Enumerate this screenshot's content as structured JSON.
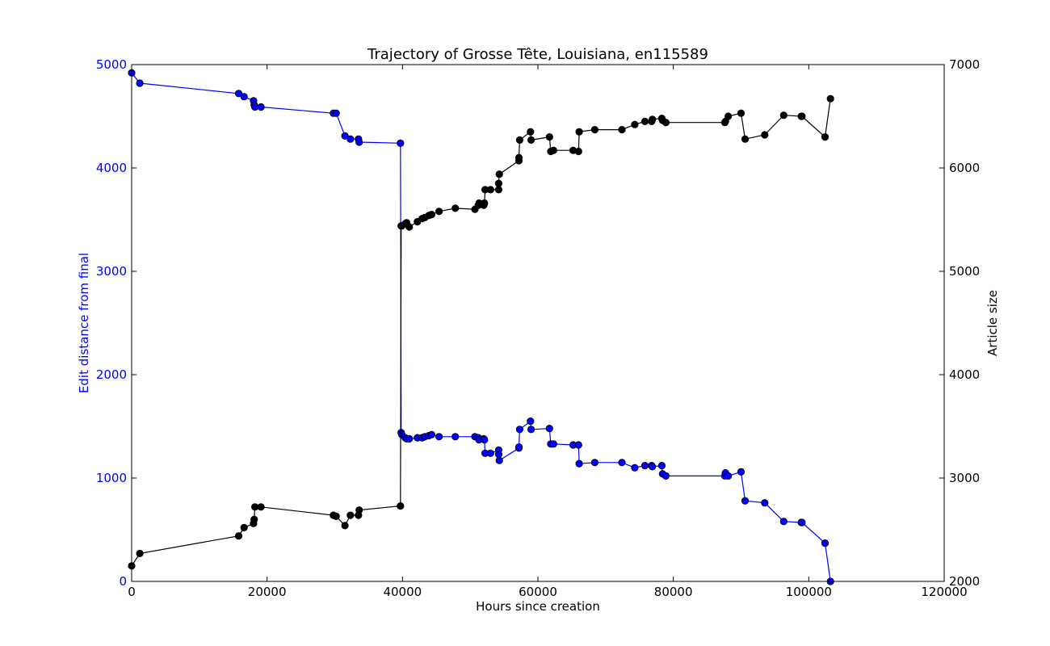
{
  "chart_data": {
    "type": "line",
    "title": "Trajectory of Grosse Tête, Louisiana, en115589",
    "xlabel": "Hours since creation",
    "ylabel_left": "Edit distance from final",
    "ylabel_right": "Article size",
    "xlim": [
      0,
      120000
    ],
    "ylim_left": [
      0,
      5000
    ],
    "ylim_right": [
      2000,
      7000
    ],
    "x_ticks": [
      "0",
      "20000",
      "40000",
      "60000",
      "80000",
      "100000",
      "120000"
    ],
    "y_left_ticks": [
      "0",
      "1000",
      "2000",
      "3000",
      "4000",
      "5000"
    ],
    "y_right_ticks": [
      "2000",
      "3000",
      "4000",
      "5000",
      "6000",
      "7000"
    ],
    "grid": false,
    "colors": {
      "left_series": "#0000ff",
      "right_series": "#000000"
    },
    "series": [
      {
        "axis": "left",
        "color": "#0000ff",
        "points": [
          [
            0,
            4920
          ],
          [
            1200,
            4820
          ],
          [
            15800,
            4720
          ],
          [
            16600,
            4690
          ],
          [
            18000,
            4650
          ],
          [
            18100,
            4610
          ],
          [
            18200,
            4590
          ],
          [
            19100,
            4590
          ],
          [
            29800,
            4530
          ],
          [
            30200,
            4530
          ],
          [
            31500,
            4310
          ],
          [
            32300,
            4280
          ],
          [
            33500,
            4280
          ],
          [
            33600,
            4250
          ],
          [
            39700,
            4240
          ],
          [
            39800,
            1440
          ],
          [
            39900,
            1420
          ],
          [
            40400,
            1390
          ],
          [
            40600,
            1380
          ],
          [
            41000,
            1380
          ],
          [
            42200,
            1390
          ],
          [
            42900,
            1390
          ],
          [
            43300,
            1400
          ],
          [
            43900,
            1410
          ],
          [
            44300,
            1420
          ],
          [
            45400,
            1400
          ],
          [
            47800,
            1400
          ],
          [
            50700,
            1400
          ],
          [
            51200,
            1390
          ],
          [
            51300,
            1370
          ],
          [
            52000,
            1380
          ],
          [
            52100,
            1370
          ],
          [
            52200,
            1240
          ],
          [
            53000,
            1240
          ],
          [
            54200,
            1270
          ],
          [
            54200,
            1230
          ],
          [
            54300,
            1170
          ],
          [
            57200,
            1290
          ],
          [
            57200,
            1300
          ],
          [
            57300,
            1470
          ],
          [
            58900,
            1550
          ],
          [
            59000,
            1470
          ],
          [
            61700,
            1480
          ],
          [
            61900,
            1330
          ],
          [
            62300,
            1330
          ],
          [
            65200,
            1320
          ],
          [
            66000,
            1320
          ],
          [
            66100,
            1140
          ],
          [
            68400,
            1150
          ],
          [
            72400,
            1150
          ],
          [
            74300,
            1100
          ],
          [
            75800,
            1120
          ],
          [
            76800,
            1120
          ],
          [
            76900,
            1110
          ],
          [
            78300,
            1120
          ],
          [
            78400,
            1040
          ],
          [
            78900,
            1020
          ],
          [
            87600,
            1020
          ],
          [
            87700,
            1050
          ],
          [
            88100,
            1020
          ],
          [
            90000,
            1060
          ],
          [
            90600,
            780
          ],
          [
            93500,
            760
          ],
          [
            96300,
            580
          ],
          [
            98900,
            570
          ],
          [
            99000,
            570
          ],
          [
            102400,
            370
          ],
          [
            103200,
            0
          ]
        ]
      },
      {
        "axis": "right",
        "color": "#000000",
        "points": [
          [
            0,
            2150
          ],
          [
            1200,
            2270
          ],
          [
            15800,
            2440
          ],
          [
            16600,
            2520
          ],
          [
            18000,
            2560
          ],
          [
            18100,
            2600
          ],
          [
            18200,
            2720
          ],
          [
            19100,
            2720
          ],
          [
            29800,
            2640
          ],
          [
            30200,
            2630
          ],
          [
            31500,
            2540
          ],
          [
            32300,
            2640
          ],
          [
            33500,
            2640
          ],
          [
            33600,
            2690
          ],
          [
            39700,
            2730
          ],
          [
            39800,
            5440
          ],
          [
            39900,
            5440
          ],
          [
            40400,
            5460
          ],
          [
            40600,
            5470
          ],
          [
            41000,
            5430
          ],
          [
            42200,
            5480
          ],
          [
            42900,
            5510
          ],
          [
            43300,
            5520
          ],
          [
            43900,
            5540
          ],
          [
            44300,
            5550
          ],
          [
            45400,
            5580
          ],
          [
            47800,
            5610
          ],
          [
            50700,
            5600
          ],
          [
            51200,
            5640
          ],
          [
            51300,
            5660
          ],
          [
            52000,
            5640
          ],
          [
            52100,
            5660
          ],
          [
            52200,
            5790
          ],
          [
            53000,
            5790
          ],
          [
            54200,
            5790
          ],
          [
            54200,
            5850
          ],
          [
            54300,
            5940
          ],
          [
            57200,
            6070
          ],
          [
            57200,
            6100
          ],
          [
            57300,
            6270
          ],
          [
            58900,
            6350
          ],
          [
            59000,
            6270
          ],
          [
            61700,
            6300
          ],
          [
            61900,
            6160
          ],
          [
            62300,
            6170
          ],
          [
            65200,
            6170
          ],
          [
            66000,
            6160
          ],
          [
            66100,
            6350
          ],
          [
            68400,
            6370
          ],
          [
            72400,
            6370
          ],
          [
            74300,
            6420
          ],
          [
            75800,
            6450
          ],
          [
            76800,
            6450
          ],
          [
            76900,
            6470
          ],
          [
            78300,
            6480
          ],
          [
            78400,
            6460
          ],
          [
            78900,
            6440
          ],
          [
            87600,
            6440
          ],
          [
            87700,
            6450
          ],
          [
            88100,
            6500
          ],
          [
            90000,
            6530
          ],
          [
            90600,
            6280
          ],
          [
            93500,
            6320
          ],
          [
            96300,
            6510
          ],
          [
            98900,
            6500
          ],
          [
            99000,
            6500
          ],
          [
            102400,
            6300
          ],
          [
            103200,
            6670
          ]
        ]
      }
    ]
  }
}
